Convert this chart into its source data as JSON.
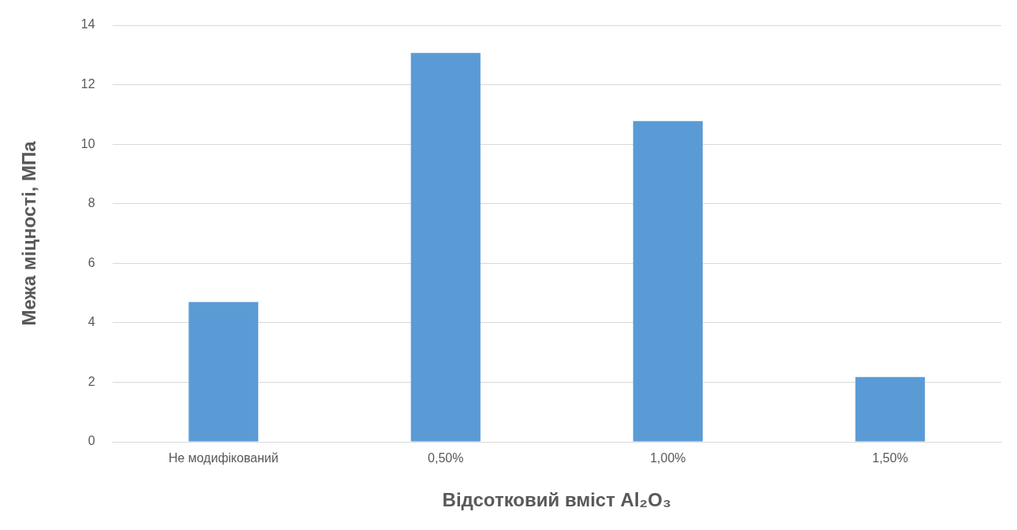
{
  "chart_data": {
    "type": "bar",
    "xlabel": "Відсотковий вміст Al₂O₃",
    "ylabel": "Межа міцності, МПа",
    "categories": [
      "Не модифікований",
      "0,50%",
      "1,00%",
      "1,50%"
    ],
    "values": [
      4.7,
      13.07,
      10.78,
      2.18
    ],
    "color": "#5b9bd5",
    "ylim": [
      0,
      14
    ],
    "yticks": [
      0,
      2,
      4,
      6,
      8,
      10,
      12,
      14
    ],
    "grid": "y"
  }
}
